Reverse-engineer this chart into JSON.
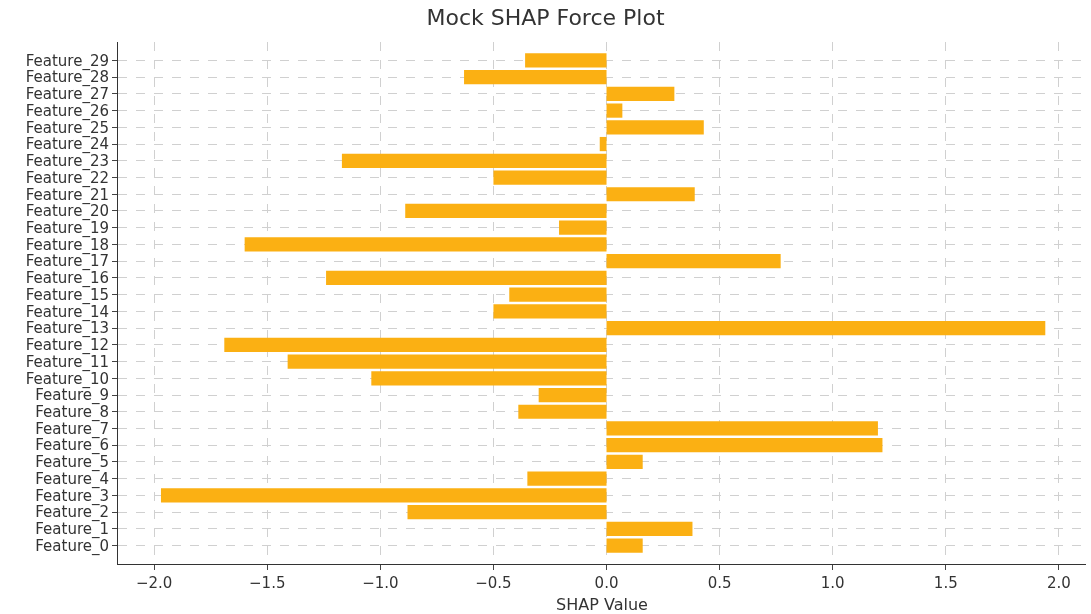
{
  "chart_data": {
    "type": "bar",
    "orientation": "horizontal",
    "title": "Mock SHAP Force Plot",
    "xlabel": "SHAP Value",
    "categories": [
      "Feature_29",
      "Feature_28",
      "Feature_27",
      "Feature_26",
      "Feature_25",
      "Feature_24",
      "Feature_23",
      "Feature_22",
      "Feature_21",
      "Feature_20",
      "Feature_19",
      "Feature_18",
      "Feature_17",
      "Feature_16",
      "Feature_15",
      "Feature_14",
      "Feature_13",
      "Feature_12",
      "Feature_11",
      "Feature_10",
      "Feature_9",
      "Feature_8",
      "Feature_7",
      "Feature_6",
      "Feature_5",
      "Feature_4",
      "Feature_3",
      "Feature_2",
      "Feature_1",
      "Feature_0"
    ],
    "values": [
      -0.36,
      -0.63,
      0.3,
      0.07,
      0.43,
      -0.03,
      -1.17,
      -0.5,
      0.39,
      -0.89,
      -0.21,
      -1.6,
      0.77,
      -1.24,
      -0.43,
      -0.5,
      1.94,
      -1.69,
      -1.41,
      -1.04,
      -0.3,
      -0.39,
      1.2,
      1.22,
      0.16,
      -0.35,
      -1.97,
      -0.88,
      0.38,
      0.16
    ],
    "color": "#fbb013",
    "xlim": [
      -2.16,
      2.12
    ],
    "xticks": [
      {
        "value": -2,
        "label": "−2.0"
      },
      {
        "value": -1.5,
        "label": "−1.5"
      },
      {
        "value": -1,
        "label": "−1.0"
      },
      {
        "value": -0.5,
        "label": "−0.5"
      },
      {
        "value": 0,
        "label": "0.0"
      },
      {
        "value": 0.5,
        "label": "0.5"
      },
      {
        "value": 1,
        "label": "1.0"
      },
      {
        "value": 1.5,
        "label": "1.5"
      },
      {
        "value": 2,
        "label": "2.0"
      }
    ],
    "grid": true
  }
}
